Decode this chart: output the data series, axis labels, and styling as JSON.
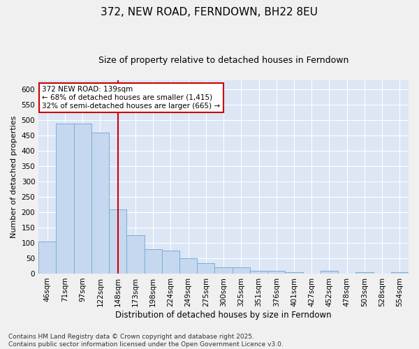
{
  "title": "372, NEW ROAD, FERNDOWN, BH22 8EU",
  "subtitle": "Size of property relative to detached houses in Ferndown",
  "xlabel": "Distribution of detached houses by size in Ferndown",
  "ylabel": "Number of detached properties",
  "categories": [
    "46sqm",
    "71sqm",
    "97sqm",
    "122sqm",
    "148sqm",
    "173sqm",
    "198sqm",
    "224sqm",
    "249sqm",
    "275sqm",
    "300sqm",
    "325sqm",
    "351sqm",
    "376sqm",
    "401sqm",
    "427sqm",
    "452sqm",
    "478sqm",
    "503sqm",
    "528sqm",
    "554sqm"
  ],
  "values": [
    105,
    490,
    490,
    460,
    210,
    125,
    80,
    75,
    50,
    35,
    20,
    20,
    10,
    10,
    5,
    0,
    10,
    0,
    5,
    0,
    5
  ],
  "bar_color": "#c5d8ef",
  "bar_edge_color": "#7aaed4",
  "background_color": "#dce6f5",
  "grid_color": "#ffffff",
  "vline_x": 4,
  "vline_color": "#cc0000",
  "annotation_text": "372 NEW ROAD: 139sqm\n← 68% of detached houses are smaller (1,415)\n32% of semi-detached houses are larger (665) →",
  "annotation_box_color": "#ffffff",
  "annotation_box_edge": "#cc0000",
  "ylim": [
    0,
    630
  ],
  "yticks": [
    0,
    50,
    100,
    150,
    200,
    250,
    300,
    350,
    400,
    450,
    500,
    550,
    600
  ],
  "footnote": "Contains HM Land Registry data © Crown copyright and database right 2025.\nContains public sector information licensed under the Open Government Licence v3.0.",
  "title_fontsize": 11,
  "subtitle_fontsize": 9,
  "xlabel_fontsize": 8.5,
  "ylabel_fontsize": 8,
  "tick_fontsize": 7.5,
  "annotation_fontsize": 7.5,
  "footnote_fontsize": 6.5
}
